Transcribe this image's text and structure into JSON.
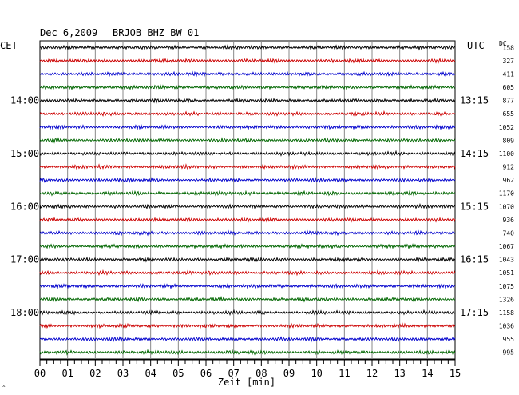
{
  "header": {
    "date": "Dec 6,2009",
    "station": "BRJOB BHZ BW 01",
    "left_tz": "CET",
    "right_tz": "UTC",
    "dc_label": "DC"
  },
  "colors": {
    "trace_cycle": [
      "#000000",
      "#cc0000",
      "#0000cc",
      "#006600"
    ],
    "grid": "#000000",
    "background": "#ffffff"
  },
  "chart_data": {
    "type": "line",
    "title": "Dec 6,2009   BRJOB BHZ BW 01",
    "xlabel": "Zeit [min]",
    "ylabel": "",
    "xlim": [
      0,
      15
    ],
    "x_ticks": [
      "00",
      "01",
      "02",
      "03",
      "04",
      "05",
      "06",
      "07",
      "08",
      "09",
      "10",
      "11",
      "12",
      "13",
      "14",
      "15"
    ],
    "row_count": 24,
    "left_hour_labels": [
      {
        "row": 4,
        "label": "14:00"
      },
      {
        "row": 8,
        "label": "15:00"
      },
      {
        "row": 12,
        "label": "16:00"
      },
      {
        "row": 16,
        "label": "17:00"
      },
      {
        "row": 20,
        "label": "18:00"
      }
    ],
    "right_hour_labels": [
      {
        "row": 4,
        "label": "13:15"
      },
      {
        "row": 8,
        "label": "14:15"
      },
      {
        "row": 12,
        "label": "15:15"
      },
      {
        "row": 16,
        "label": "16:15"
      },
      {
        "row": 20,
        "label": "17:15"
      }
    ],
    "dc_offsets": [
      "158",
      "327",
      "411",
      "605",
      "877",
      "655",
      "1052",
      "809",
      "1100",
      "912",
      "962",
      "1170",
      "1070",
      "936",
      "740",
      "1067",
      "1043",
      "1051",
      "1075",
      "1326",
      "1158",
      "1036",
      "955",
      "995"
    ]
  }
}
